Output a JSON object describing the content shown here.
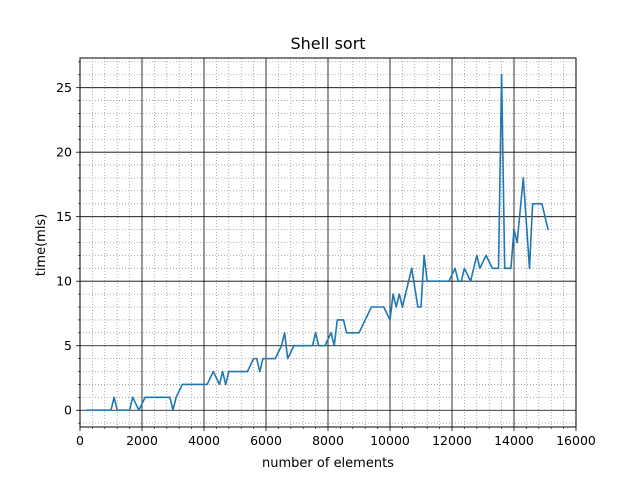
{
  "chart_data": {
    "type": "line",
    "title": "Shell sort",
    "xlabel": "number of elements",
    "ylabel": "time(mls)",
    "xlim": [
      0,
      16000
    ],
    "ylim": [
      -1.3,
      27.3
    ],
    "x_ticks": [
      0,
      2000,
      4000,
      6000,
      8000,
      10000,
      12000,
      14000,
      16000
    ],
    "x_tick_labels": [
      "0",
      "2000",
      "4000",
      "6000",
      "8000",
      "10000",
      "12000",
      "14000",
      "16000"
    ],
    "y_ticks": [
      0,
      5,
      10,
      15,
      20,
      25
    ],
    "y_tick_labels": [
      "0",
      "5",
      "10",
      "15",
      "20",
      "25"
    ],
    "x_minor_step": 400,
    "y_minor_step": 1,
    "grid": "major solid, minor dotted",
    "series": [
      {
        "color": "#1f77b4",
        "x": [
          200,
          400,
          600,
          800,
          1000,
          1100,
          1200,
          1400,
          1600,
          1700,
          1900,
          2100,
          2300,
          2500,
          2700,
          2900,
          3000,
          3100,
          3300,
          3500,
          3700,
          3900,
          4100,
          4300,
          4500,
          4600,
          4700,
          4800,
          5000,
          5200,
          5400,
          5600,
          5700,
          5800,
          5900,
          6100,
          6300,
          6500,
          6600,
          6700,
          6900,
          7100,
          7300,
          7500,
          7600,
          7700,
          7900,
          8100,
          8200,
          8300,
          8500,
          8600,
          8800,
          9000,
          9200,
          9400,
          9600,
          9800,
          10000,
          10100,
          10200,
          10300,
          10400,
          10500,
          10700,
          10900,
          11000,
          11100,
          11200,
          11300,
          11500,
          11700,
          11900,
          12100,
          12200,
          12300,
          12400,
          12600,
          12700,
          12800,
          12900,
          13100,
          13300,
          13500,
          13600,
          13700,
          13900,
          14000,
          14100,
          14300,
          14500,
          14600,
          14700,
          14900,
          15100
        ],
        "y": [
          0,
          0,
          0,
          0,
          0,
          1,
          0,
          0,
          0,
          1,
          0,
          1,
          1,
          1,
          1,
          1,
          0,
          1,
          2,
          2,
          2,
          2,
          2,
          3,
          2,
          3,
          2,
          3,
          3,
          3,
          3,
          4,
          4,
          3,
          4,
          4,
          4,
          5,
          6,
          4,
          5,
          5,
          5,
          5,
          6,
          5,
          5,
          6,
          5,
          7,
          7,
          6,
          6,
          6,
          7,
          8,
          8,
          8,
          7,
          9,
          8,
          9,
          8,
          9,
          11,
          8,
          8,
          12,
          10,
          10,
          10,
          10,
          10,
          11,
          10,
          10,
          11,
          10,
          11,
          12,
          11,
          12,
          11,
          11,
          26,
          11,
          11,
          14,
          13,
          18,
          11,
          16,
          16,
          16,
          14
        ]
      }
    ]
  }
}
